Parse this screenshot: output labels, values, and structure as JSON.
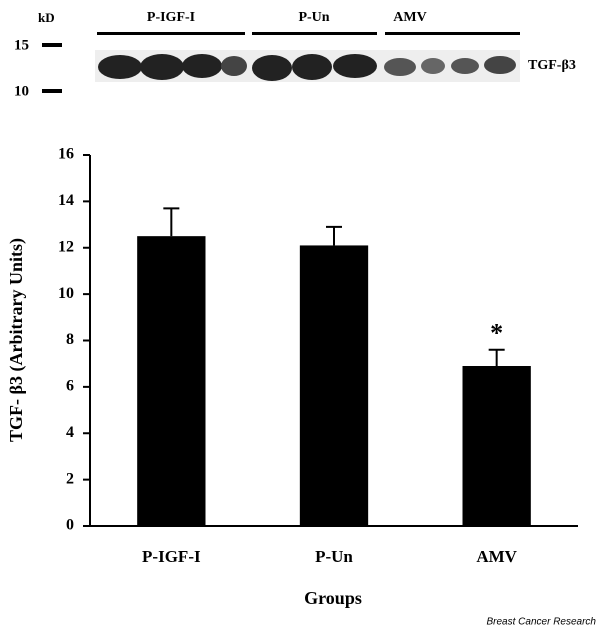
{
  "blot": {
    "unit_label": "kD",
    "markers": [
      15,
      10
    ],
    "lanes": [
      "P-IGF-I",
      "P-Un",
      "AMV"
    ],
    "protein": "TGF-β3"
  },
  "chart_data": {
    "type": "bar",
    "y_label": "TGF- β3  (Arbitrary Units)",
    "x_label": "Groups",
    "categories": [
      "P-IGF-I",
      "P-Un",
      "AMV"
    ],
    "values": [
      12.5,
      12.1,
      6.9
    ],
    "errors": [
      1.2,
      0.8,
      0.7
    ],
    "color": "#000000",
    "ylim": [
      0,
      16
    ],
    "yticks": [
      0,
      2,
      4,
      6,
      8,
      10,
      12,
      14,
      16
    ],
    "annotations": [
      "*"
    ]
  },
  "source": "Breast Cancer Research"
}
